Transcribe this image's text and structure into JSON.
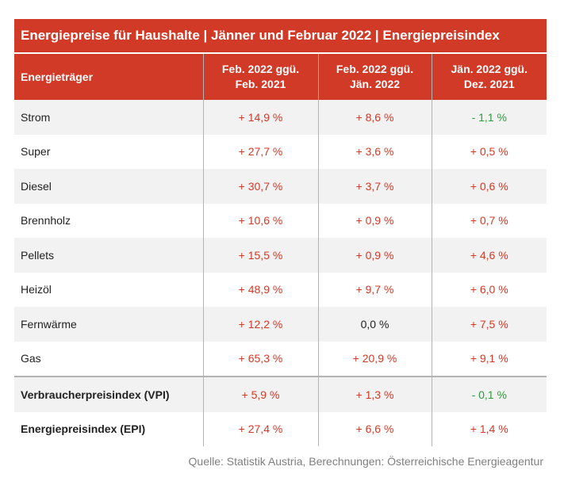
{
  "title": "Energiepreise für Haushalte | Jänner und Februar 2022 | Energiepreisindex",
  "colors": {
    "accent": "#d23a28",
    "increase": "#d23a28",
    "decrease": "#2e9b3a",
    "neutral": "#222222",
    "row_shade": "#f2f2f2"
  },
  "table": {
    "headers": [
      {
        "line1": "Energieträger",
        "line2": ""
      },
      {
        "line1": "Feb. 2022 ggü.",
        "line2": "Feb. 2021"
      },
      {
        "line1": "Feb. 2022 ggü.",
        "line2": "Jän. 2022"
      },
      {
        "line1": "Jän. 2022 ggü.",
        "line2": "Dez. 2021"
      }
    ],
    "rows": [
      {
        "label": "Strom",
        "values": [
          "+ 14,9 %",
          "+ 8,6 %",
          "- 1,1 %"
        ],
        "tones": [
          "red",
          "red",
          "green"
        ]
      },
      {
        "label": "Super",
        "values": [
          "+ 27,7 %",
          "+ 3,6 %",
          "+ 0,5 %"
        ],
        "tones": [
          "red",
          "red",
          "red"
        ]
      },
      {
        "label": "Diesel",
        "values": [
          "+ 30,7 %",
          "+ 3,7 %",
          "+ 0,6 %"
        ],
        "tones": [
          "red",
          "red",
          "red"
        ]
      },
      {
        "label": "Brennholz",
        "values": [
          "+ 10,6 %",
          "+ 0,9 %",
          "+ 0,7 %"
        ],
        "tones": [
          "red",
          "red",
          "red"
        ]
      },
      {
        "label": "Pellets",
        "values": [
          "+ 15,5 %",
          "+ 0,9 %",
          "+ 4,6 %"
        ],
        "tones": [
          "red",
          "red",
          "red"
        ]
      },
      {
        "label": "Heizöl",
        "values": [
          "+ 48,9 %",
          "+ 9,7 %",
          "+ 6,0 %"
        ],
        "tones": [
          "red",
          "red",
          "red"
        ]
      },
      {
        "label": "Fernwärme",
        "values": [
          "+ 12,2 %",
          "0,0 %",
          "+ 7,5 %"
        ],
        "tones": [
          "red",
          "black",
          "red"
        ]
      },
      {
        "label": "Gas",
        "values": [
          "+ 65,3 %",
          "+ 20,9 %",
          "+ 9,1 %"
        ],
        "tones": [
          "red",
          "red",
          "red"
        ]
      },
      {
        "label": "Verbraucherpreisindex (VPI)",
        "values": [
          "+ 5,9 %",
          "+ 1,3 %",
          "- 0,1 %"
        ],
        "tones": [
          "red",
          "red",
          "green"
        ]
      },
      {
        "label": "Energiepreisindex (EPI)",
        "values": [
          "+ 27,4 %",
          "+ 6,6 %",
          "+ 1,4 %"
        ],
        "tones": [
          "red",
          "red",
          "red"
        ]
      }
    ]
  },
  "source": "Quelle: Statistik Austria, Berechnungen: Österreichische Energieagentur"
}
